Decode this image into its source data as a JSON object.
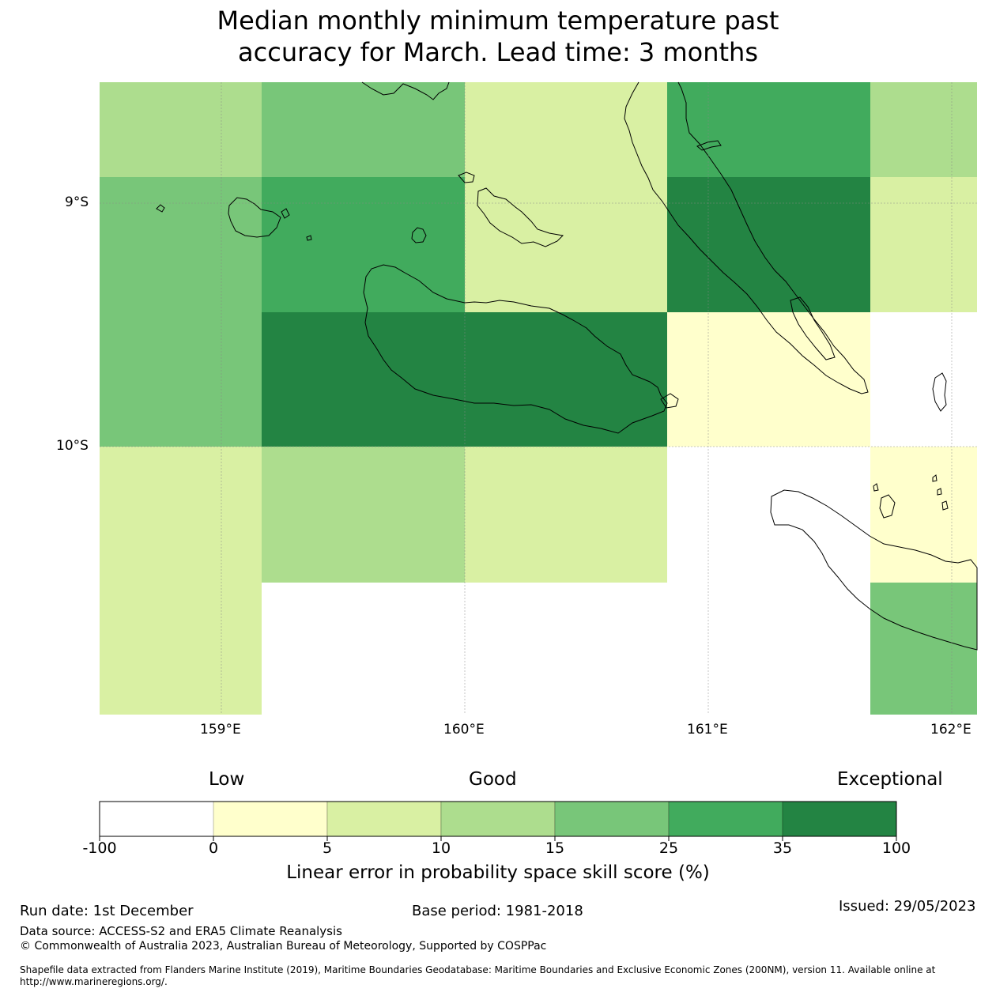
{
  "title": {
    "line1": "Median monthly minimum temperature past",
    "line2": "accuracy for March. Lead time: 3 months"
  },
  "map": {
    "lat_labels": [
      "9°S",
      "10°S"
    ],
    "lon_labels": [
      "159°E",
      "160°E",
      "161°E",
      "162°E"
    ],
    "lat_range": [
      -11.1,
      -8.5
    ],
    "lon_range": [
      158.5,
      162.1
    ],
    "grid_cells": [
      {
        "row": 0,
        "col": 0,
        "bin": 3
      },
      {
        "row": 0,
        "col": 1,
        "bin": 4
      },
      {
        "row": 0,
        "col": 2,
        "bin": 2
      },
      {
        "row": 0,
        "col": 3,
        "bin": 5
      },
      {
        "row": 0,
        "col": 4,
        "bin": 3
      },
      {
        "row": 1,
        "col": 0,
        "bin": 4
      },
      {
        "row": 1,
        "col": 1,
        "bin": 5
      },
      {
        "row": 1,
        "col": 2,
        "bin": 2
      },
      {
        "row": 1,
        "col": 3,
        "bin": 6
      },
      {
        "row": 1,
        "col": 4,
        "bin": 2
      },
      {
        "row": 2,
        "col": 0,
        "bin": 4
      },
      {
        "row": 2,
        "col": 1,
        "bin": 6
      },
      {
        "row": 2,
        "col": 2,
        "bin": 6
      },
      {
        "row": 2,
        "col": 3,
        "bin": 1
      },
      {
        "row": 2,
        "col": 4,
        "bin": 0
      },
      {
        "row": 3,
        "col": 0,
        "bin": 2
      },
      {
        "row": 3,
        "col": 1,
        "bin": 3
      },
      {
        "row": 3,
        "col": 2,
        "bin": 2
      },
      {
        "row": 3,
        "col": 3,
        "bin": 0
      },
      {
        "row": 3,
        "col": 4,
        "bin": 1
      },
      {
        "row": 4,
        "col": 0,
        "bin": 2
      },
      {
        "row": 4,
        "col": 1,
        "bin": 0
      },
      {
        "row": 4,
        "col": 2,
        "bin": 0
      },
      {
        "row": 4,
        "col": 3,
        "bin": 0
      },
      {
        "row": 4,
        "col": 4,
        "bin": 4
      }
    ]
  },
  "colorbar": {
    "qualitative": [
      "Low",
      "Good",
      "Exceptional"
    ],
    "ticks": [
      "-100",
      "0",
      "5",
      "10",
      "15",
      "25",
      "35",
      "100"
    ],
    "colors": [
      "#ffffff",
      "#ffffcc",
      "#d9f0a3",
      "#addd8e",
      "#78c679",
      "#41ab5d",
      "#238443"
    ],
    "title": "Linear error in probability space skill score (%)"
  },
  "footer": {
    "run_date": "Run date: 1st December",
    "base_period": "Base period: 1981-2018",
    "issued": "Issued: 29/05/2023",
    "data_source": "Data source: ACCESS-S2 and ERA5 Climate Reanalysis",
    "copyright": "© Commonwealth of Australia 2023, Australian Bureau of Meteorology, Supported by COSPPac",
    "shapefile_line1": "Shapefile data extracted from Flanders Marine Institute (2019), Maritime Boundaries Geodatabase: Maritime Boundaries and Exclusive Economic Zones (200NM), version 11. Available online at",
    "shapefile_line2": "http://www.marineregions.org/."
  }
}
